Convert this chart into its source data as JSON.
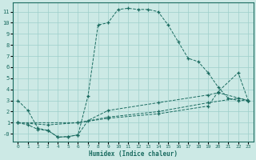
{
  "bg_color": "#cce9e5",
  "grid_color": "#9ecfca",
  "line_color": "#1a6b60",
  "xlabel": "Humidex (Indice chaleur)",
  "xlim": [
    -0.5,
    23.5
  ],
  "ylim": [
    -0.7,
    11.8
  ],
  "xticks": [
    0,
    1,
    2,
    3,
    4,
    5,
    6,
    7,
    8,
    9,
    10,
    11,
    12,
    13,
    14,
    15,
    16,
    17,
    18,
    19,
    20,
    21,
    22,
    23
  ],
  "yticks": [
    0,
    1,
    2,
    3,
    4,
    5,
    6,
    7,
    8,
    9,
    10,
    11
  ],
  "ytick_labels": [
    "-0",
    "1",
    "2",
    "3",
    "4",
    "5",
    "6",
    "7",
    "8",
    "9",
    "10",
    "11"
  ],
  "series": [
    {
      "x": [
        0,
        1,
        2,
        3,
        4,
        5,
        6,
        7,
        8,
        9,
        10,
        11,
        12,
        13,
        14,
        15,
        16,
        17,
        18,
        19,
        20,
        21,
        22,
        23
      ],
      "y": [
        3.0,
        2.1,
        0.5,
        0.3,
        -0.3,
        -0.25,
        -0.1,
        3.4,
        9.8,
        10.0,
        11.2,
        11.3,
        11.2,
        11.2,
        11.0,
        9.8,
        8.3,
        6.8,
        6.5,
        5.5,
        4.2,
        3.2,
        3.0,
        3.0
      ]
    },
    {
      "x": [
        0,
        1,
        2,
        3,
        4,
        5,
        6,
        7,
        9,
        14,
        19,
        20,
        23
      ],
      "y": [
        1.0,
        0.8,
        0.4,
        0.3,
        -0.3,
        -0.25,
        -0.1,
        1.2,
        2.1,
        2.8,
        3.5,
        3.7,
        3.0
      ]
    },
    {
      "x": [
        0,
        3,
        6,
        9,
        14,
        19,
        22,
        23
      ],
      "y": [
        1.0,
        0.8,
        1.0,
        1.5,
        2.0,
        2.8,
        3.2,
        3.0
      ]
    },
    {
      "x": [
        0,
        6,
        9,
        14,
        19,
        20,
        22,
        23
      ],
      "y": [
        1.0,
        1.0,
        1.4,
        1.8,
        2.5,
        3.8,
        5.5,
        3.0
      ]
    }
  ]
}
